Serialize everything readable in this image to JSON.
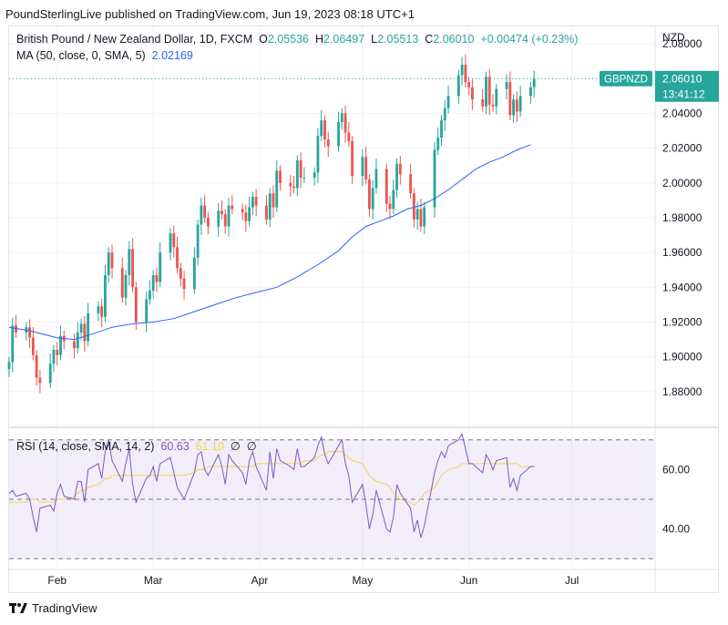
{
  "header": {
    "text": "PoundSterlingLive published on TradingView.com, Jun 19, 2023 08:18 UTC+1"
  },
  "legend": {
    "symbol": "British Pound / New Zealand Dollar, 1D, FXCM",
    "o_label": "O",
    "o": "2.05536",
    "h_label": "H",
    "h": "2.06497",
    "l_label": "L",
    "l": "2.05513",
    "c_label": "C",
    "c": "2.06010",
    "change": "+0.00474 (+0.23%)",
    "ma_label": "MA (50, close, 0, SMA, 5)",
    "ma_value": "2.02169",
    "rsi_label": "RSI (14, close, SMA, 14, 2)",
    "rsi_value": "60.63",
    "rsi_ma_value": "61.10",
    "na1": "∅",
    "na2": "∅"
  },
  "price_axis": {
    "currency": "NZD",
    "symbol_tag": "GBPNZD",
    "last_price": "2.06010",
    "countdown": "13:41:12"
  },
  "colors": {
    "up": "#26a69a",
    "down": "#ef5350",
    "ma": "#2962ff",
    "rsi": "#7e57c2",
    "rsi_ma": "#f2d34f"
  },
  "footer": {
    "brand": "TradingView"
  },
  "chart_data": [
    {
      "type": "candlestick",
      "title": "British Pound / New Zealand Dollar, 1D, FXCM",
      "ylim": [
        1.86,
        2.09
      ],
      "yticks": [
        "2.08000",
        "2.06000",
        "2.04000",
        "2.02000",
        "2.00000",
        "1.98000",
        "1.96000",
        "1.94000",
        "1.92000",
        "1.90000",
        "1.88000"
      ],
      "x_range_days": [
        -14,
        174
      ],
      "x_ticks": [
        {
          "label": "Feb",
          "day": 0
        },
        {
          "label": "Mar",
          "day": 28
        },
        {
          "label": "Apr",
          "day": 59
        },
        {
          "label": "May",
          "day": 89
        },
        {
          "label": "Jun",
          "day": 120
        },
        {
          "label": "Jul",
          "day": 150
        }
      ],
      "closes": [
        1.897,
        1.918,
        1.914,
        1.917,
        1.911,
        1.901,
        1.888,
        1.885,
        1.896,
        1.904,
        1.901,
        1.912,
        1.909,
        1.905,
        1.914,
        1.919,
        1.909,
        1.925,
        1.929,
        1.923,
        1.947,
        1.96,
        1.951,
        1.934,
        1.947,
        1.962,
        1.94,
        1.92,
        1.933,
        1.938,
        1.947,
        1.943,
        1.96,
        1.971,
        1.963,
        1.951,
        1.945,
        1.939,
        1.957,
        1.976,
        1.987,
        1.98,
        1.975,
        1.984,
        1.982,
        1.975,
        1.987,
        1.985,
        1.983,
        1.978,
        1.986,
        1.992,
        1.987,
        1.979,
        1.994,
        1.986,
        2.007,
        2.0,
        1.998,
        1.997,
        2.013,
        2.003,
        2.003,
        2.006,
        2.027,
        2.036,
        2.025,
        2.021,
        2.035,
        2.04,
        2.029,
        2.024,
        2.004,
        2.015,
        2.002,
        1.985,
        1.997,
        2.008,
        1.988,
        1.985,
        1.996,
        2.011,
        2.005,
        1.994,
        1.979,
        1.985,
        1.975,
        1.986,
        2.019,
        2.026,
        2.036,
        2.043,
        2.05,
        2.062,
        2.068,
        2.058,
        2.055,
        2.048,
        2.044,
        2.061,
        2.045,
        2.044,
        2.054,
        2.058,
        2.039,
        2.048,
        2.041,
        2.05,
        2.055,
        2.06
      ],
      "ma": {
        "label": "MA (50, close, 0, SMA, 5)",
        "start": [
          -14,
          1.917
        ],
        "points": [
          [
            -8,
            1.915
          ],
          [
            0,
            1.911
          ],
          [
            5,
            1.91
          ],
          [
            10,
            1.913
          ],
          [
            16,
            1.917
          ],
          [
            22,
            1.919
          ],
          [
            28,
            1.92
          ],
          [
            34,
            1.922
          ],
          [
            40,
            1.926
          ],
          [
            46,
            1.93
          ],
          [
            52,
            1.934
          ],
          [
            58,
            1.937
          ],
          [
            64,
            1.94
          ],
          [
            70,
            1.946
          ],
          [
            76,
            1.953
          ],
          [
            82,
            1.961
          ],
          [
            86,
            1.969
          ],
          [
            90,
            1.975
          ],
          [
            94,
            1.978
          ],
          [
            98,
            1.981
          ],
          [
            102,
            1.985
          ],
          [
            106,
            1.987
          ],
          [
            110,
            1.991
          ],
          [
            114,
            1.996
          ],
          [
            118,
            2.002
          ],
          [
            122,
            2.008
          ],
          [
            126,
            2.012
          ],
          [
            130,
            2.015
          ],
          [
            134,
            2.019
          ],
          [
            138,
            2.022
          ]
        ]
      }
    },
    {
      "type": "line",
      "title": "RSI (14, close, SMA, 14, 2)",
      "ylim": [
        27,
        73
      ],
      "yticks": [
        "60.00",
        "40.00"
      ],
      "bands": [
        30,
        50,
        70
      ],
      "rsi": [
        52,
        53,
        51,
        52,
        50,
        44,
        39,
        47,
        48,
        46,
        52,
        55,
        51,
        50,
        56,
        56,
        49,
        60,
        62,
        57,
        66,
        70,
        63,
        56,
        62,
        67,
        55,
        49,
        57,
        58,
        61,
        56,
        62,
        64,
        59,
        54,
        52,
        50,
        59,
        65,
        66,
        60,
        58,
        65,
        61,
        55,
        65,
        63,
        59,
        55,
        63,
        66,
        61,
        53,
        66,
        57,
        67,
        63,
        61,
        60,
        67,
        61,
        61,
        64,
        68,
        71,
        65,
        62,
        68,
        70,
        62,
        58,
        49,
        55,
        48,
        40,
        45,
        53,
        40,
        39,
        44,
        55,
        52,
        47,
        39,
        43,
        37,
        41,
        59,
        63,
        66,
        64,
        68,
        70,
        72,
        67,
        62,
        62,
        59,
        65,
        63,
        60,
        63,
        64,
        54,
        57,
        53,
        58,
        61,
        61
      ],
      "rsi_ma": [
        49,
        49,
        49,
        49,
        50,
        50,
        50,
        49,
        49,
        49,
        50,
        50,
        50,
        51,
        52,
        53,
        53,
        54,
        55,
        56,
        57,
        57,
        58,
        58,
        58,
        58,
        58,
        58,
        58,
        58,
        58,
        58,
        58,
        58,
        58,
        58,
        58,
        58,
        59,
        60,
        60,
        60,
        61,
        61,
        61,
        61,
        61,
        61,
        61,
        61,
        61,
        61,
        62,
        62,
        62,
        62,
        62,
        62,
        62,
        62,
        62,
        62,
        63,
        63,
        64,
        65,
        65,
        66,
        66,
        66,
        65,
        64,
        63,
        62,
        60,
        58,
        57,
        56,
        55,
        54,
        52,
        51,
        50,
        49,
        48,
        49,
        50,
        52,
        54,
        56,
        58,
        59,
        60,
        61,
        62,
        62,
        62,
        62,
        62,
        62,
        62,
        62,
        62,
        62,
        62,
        62,
        62,
        61,
        61,
        61
      ]
    }
  ]
}
